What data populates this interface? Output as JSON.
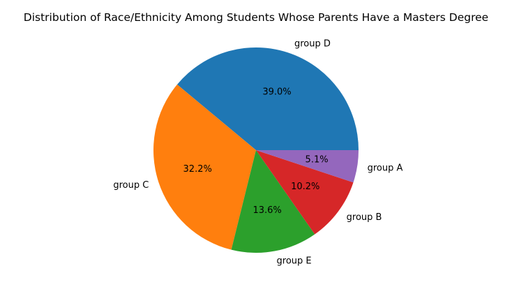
{
  "chart_data": {
    "type": "pie",
    "title": "Distribution of Race/Ethnicity Among Students Whose Parents Have a Masters Degree",
    "start_angle_deg": 0,
    "direction": "counterclockwise",
    "slices": [
      {
        "label": "group D",
        "pct_label": "39.0%",
        "value": 39.0,
        "color": "#1f77b4"
      },
      {
        "label": "group C",
        "pct_label": "32.2%",
        "value": 32.2,
        "color": "#ff7f0e"
      },
      {
        "label": "group E",
        "pct_label": "13.6%",
        "value": 13.6,
        "color": "#2ca02c"
      },
      {
        "label": "group B",
        "pct_label": "10.2%",
        "value": 10.2,
        "color": "#d62728"
      },
      {
        "label": "group A",
        "pct_label": "5.1%",
        "value": 5.1,
        "color": "#9467bd"
      }
    ]
  }
}
